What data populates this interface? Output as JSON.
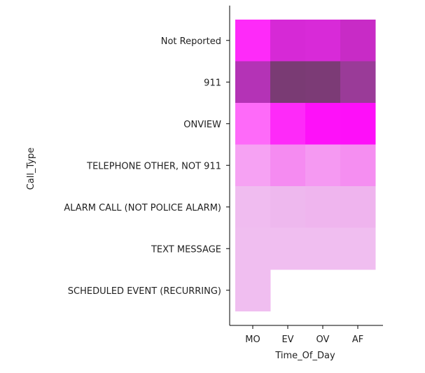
{
  "chart_data": {
    "type": "heatmap",
    "xlabel": "Time_Of_Day",
    "ylabel": "Call_Type",
    "x_categories": [
      "MO",
      "EV",
      "OV",
      "AF"
    ],
    "y_categories": [
      "Not Reported",
      "911",
      "ONVIEW",
      "TELEPHONE OTHER, NOT 911",
      "ALARM CALL (NOT POLICE ALARM)",
      "TEXT MESSAGE",
      "SCHEDULED EVENT (RECURRING)"
    ],
    "cells": [
      [
        "#fe2af9",
        "#d629d6",
        "#d82ad8",
        "#c82bc6"
      ],
      [
        "#b433b6",
        "#7a3b74",
        "#7c3b76",
        "#9a3b98"
      ],
      [
        "#fe6af9",
        "#fe2af9",
        "#fe11f9",
        "#fe0ff9"
      ],
      [
        "#f6a2f3",
        "#f58bf1",
        "#f599f2",
        "#f58ef1"
      ],
      [
        "#f0bcf0",
        "#eeb8ee",
        "#efb5ee",
        "#efb4ee"
      ],
      [
        "#f0bef0",
        "#f0bef0",
        "#f0bef0",
        "#f0bef0"
      ],
      [
        "#f0bef0",
        null,
        null,
        null
      ]
    ],
    "grid": false,
    "colorbar": false
  }
}
